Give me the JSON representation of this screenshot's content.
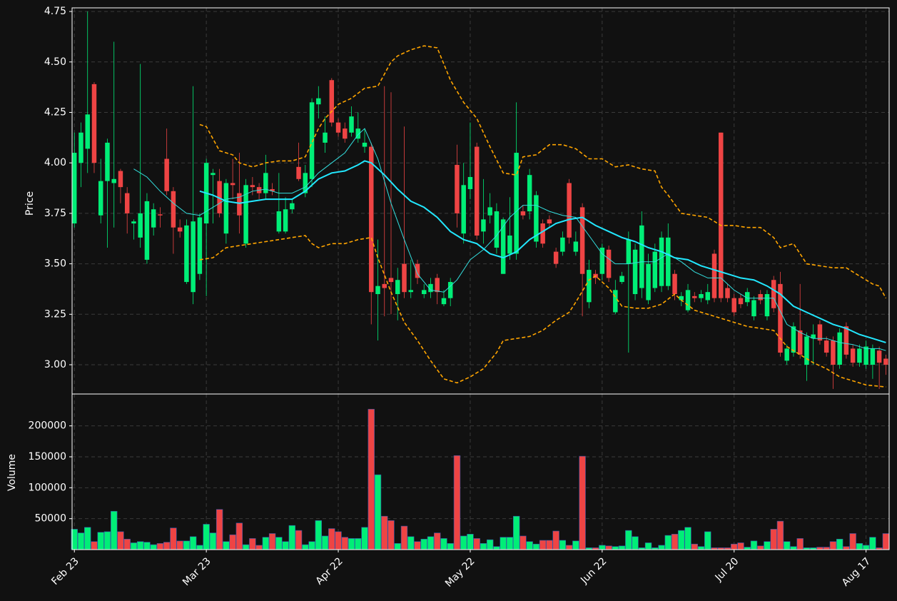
{
  "chart_data": [
    {
      "type": "candlestick",
      "ylabel": "Price",
      "up_color": "#00ee77",
      "down_color": "#ee4444",
      "xlim": [
        -0.35,
        123.5
      ],
      "ylim": [
        2.855,
        4.768
      ],
      "yticks": [
        {
          "value": 3,
          "label": "3.00"
        },
        3.25,
        {
          "value": 3.5,
          "label": "3.50"
        },
        3.75,
        {
          "value": 4,
          "label": "4.00"
        },
        4.25,
        {
          "value": 4.5,
          "label": "4.50"
        },
        4.75
      ],
      "grid": true,
      "open": [
        3.7,
        4.0,
        4.07,
        4.39,
        3.74,
        3.91,
        3.9,
        3.96,
        3.85,
        3.7,
        3.63,
        3.52,
        3.68,
        3.745,
        4.02,
        3.86,
        3.68,
        3.41,
        3.36,
        3.45,
        3.7,
        3.94,
        3.91,
        3.65,
        3.9,
        3.85,
        3.6,
        3.89,
        3.88,
        3.85,
        3.87,
        3.66,
        3.66,
        3.77,
        3.98,
        3.85,
        3.92,
        4.29,
        4.1,
        4.41,
        4.2,
        4.17,
        4.15,
        4.12,
        4.08,
        4.08,
        3.35,
        3.4,
        3.43,
        3.35,
        3.5,
        3.36,
        3.5,
        3.35,
        3.36,
        3.43,
        3.3,
        3.33,
        3.99,
        3.65,
        3.87,
        4.08,
        3.66,
        3.74,
        3.58,
        3.45,
        3.55,
        3.55,
        3.76,
        3.76,
        3.61,
        3.7,
        3.72,
        3.56,
        3.56,
        3.9,
        3.56,
        3.78,
        3.31,
        3.45,
        3.45,
        3.57,
        3.26,
        3.41,
        3.5,
        3.35,
        3.38,
        3.32,
        3.38,
        3.39,
        3.39,
        3.45,
        3.32,
        3.27,
        3.34,
        3.33,
        3.32,
        3.55,
        4.15,
        3.38,
        3.33,
        3.33,
        3.31,
        3.24,
        3.35,
        3.24,
        3.42,
        3.4,
        3.02,
        3.06,
        3.17,
        3.0,
        3.13,
        3.2,
        3.12,
        3.12,
        3.0,
        3.19,
        3.08,
        3.01,
        3.0,
        3.0,
        3.07,
        3.03
      ],
      "high": [
        4.15,
        4.2,
        4.75,
        4.4,
        4.02,
        4.12,
        4.6,
        3.97,
        3.88,
        3.72,
        4.49,
        3.85,
        3.8,
        3.78,
        4.17,
        3.88,
        3.72,
        3.72,
        4.38,
        3.75,
        4.02,
        3.97,
        3.97,
        3.92,
        4.02,
        4.05,
        3.92,
        3.93,
        3.9,
        4.04,
        3.9,
        3.95,
        3.83,
        3.82,
        4.1,
        3.99,
        4.32,
        4.38,
        4.23,
        4.42,
        4.22,
        4.2,
        4.28,
        4.25,
        4.17,
        4.1,
        3.62,
        4.38,
        4.35,
        3.48,
        4.18,
        3.52,
        3.52,
        3.4,
        3.43,
        3.45,
        3.37,
        3.43,
        4.09,
        4.0,
        4.2,
        4.1,
        3.92,
        3.85,
        3.8,
        3.73,
        3.83,
        4.3,
        3.79,
        3.97,
        3.86,
        3.72,
        3.74,
        3.58,
        3.66,
        3.92,
        3.66,
        3.8,
        3.52,
        3.47,
        3.6,
        3.59,
        3.42,
        3.46,
        3.66,
        3.6,
        3.76,
        3.55,
        3.6,
        3.66,
        3.7,
        3.47,
        3.36,
        3.4,
        3.36,
        3.37,
        3.4,
        3.57,
        4.15,
        3.4,
        3.35,
        3.35,
        3.38,
        3.34,
        3.37,
        3.37,
        3.44,
        3.46,
        3.1,
        3.21,
        3.4,
        3.16,
        3.2,
        3.22,
        3.14,
        3.14,
        3.18,
        3.21,
        3.1,
        3.1,
        3.12,
        3.1,
        3.09,
        3.05
      ],
      "low": [
        3.68,
        3.88,
        3.95,
        3.95,
        3.7,
        3.58,
        3.68,
        3.8,
        3.65,
        3.62,
        3.58,
        3.5,
        3.64,
        3.68,
        3.84,
        3.55,
        3.63,
        3.4,
        3.3,
        3.42,
        3.34,
        3.7,
        3.73,
        3.6,
        3.82,
        3.65,
        3.58,
        3.84,
        3.82,
        3.82,
        3.84,
        3.65,
        3.65,
        3.75,
        3.91,
        3.83,
        3.88,
        4.22,
        4.05,
        4.18,
        4.13,
        4.1,
        4.13,
        4.1,
        4.05,
        3.2,
        3.12,
        3.24,
        3.25,
        3.22,
        3.33,
        3.33,
        3.4,
        3.33,
        3.33,
        3.3,
        3.29,
        3.29,
        3.68,
        3.6,
        3.82,
        3.62,
        3.6,
        3.7,
        3.55,
        3.45,
        3.52,
        3.52,
        3.72,
        3.72,
        3.58,
        3.58,
        3.68,
        3.48,
        3.54,
        3.6,
        3.54,
        3.24,
        3.28,
        3.4,
        3.42,
        3.41,
        3.25,
        3.4,
        3.06,
        3.32,
        3.33,
        3.3,
        3.36,
        3.36,
        3.37,
        3.32,
        3.29,
        3.26,
        3.31,
        3.31,
        3.3,
        3.31,
        3.31,
        3.31,
        3.24,
        3.28,
        3.29,
        3.22,
        3.3,
        3.22,
        3.26,
        3.04,
        3.0,
        3.04,
        3.03,
        2.92,
        3.0,
        3.1,
        3.04,
        2.88,
        2.98,
        3.03,
        2.99,
        2.99,
        2.98,
        2.93,
        2.88,
        2.95
      ],
      "close": [
        4.05,
        4.15,
        4.24,
        4.0,
        3.91,
        4.1,
        3.92,
        3.88,
        3.75,
        3.71,
        3.75,
        3.81,
        3.77,
        3.74,
        3.86,
        3.68,
        3.66,
        3.69,
        3.71,
        3.73,
        4.0,
        3.95,
        3.75,
        3.9,
        3.89,
        3.74,
        3.89,
        3.88,
        3.85,
        3.95,
        3.86,
        3.76,
        3.77,
        3.8,
        3.92,
        3.95,
        4.3,
        4.32,
        4.15,
        4.2,
        4.15,
        4.12,
        4.23,
        4.17,
        4.1,
        3.36,
        3.39,
        3.38,
        3.41,
        3.42,
        3.36,
        3.37,
        3.43,
        3.37,
        3.4,
        3.36,
        3.33,
        3.41,
        3.75,
        3.89,
        3.93,
        3.64,
        3.72,
        3.78,
        3.76,
        3.72,
        3.64,
        4.05,
        3.74,
        3.94,
        3.84,
        3.6,
        3.7,
        3.5,
        3.63,
        3.63,
        3.61,
        3.45,
        3.47,
        3.43,
        3.58,
        3.43,
        3.37,
        3.44,
        3.62,
        3.57,
        3.69,
        3.5,
        3.56,
        3.63,
        3.63,
        3.35,
        3.34,
        3.37,
        3.33,
        3.35,
        3.36,
        3.33,
        3.33,
        3.33,
        3.26,
        3.3,
        3.36,
        3.32,
        3.32,
        3.35,
        3.28,
        3.06,
        3.08,
        3.19,
        3.05,
        3.14,
        3.15,
        3.12,
        3.06,
        3.0,
        3.16,
        3.05,
        3.01,
        3.08,
        3.09,
        3.08,
        3.01,
        3.0
      ],
      "lines": [
        {
          "color": "#33dddd",
          "width": 1,
          "x": [
            9,
            11,
            13,
            15,
            17,
            19,
            21,
            23,
            25,
            27,
            29,
            31,
            33,
            35,
            37,
            39,
            41,
            43,
            44,
            46,
            48,
            50,
            52,
            54,
            56,
            58,
            60,
            62,
            64,
            66,
            68,
            70,
            72,
            74,
            76,
            78,
            80,
            82,
            84,
            86,
            88,
            90,
            92,
            94,
            96,
            98,
            100,
            102,
            104,
            106,
            108,
            110,
            112,
            114,
            116,
            118,
            120,
            122,
            123
          ],
          "values": [
            3.97,
            3.93,
            3.86,
            3.8,
            3.75,
            3.74,
            3.78,
            3.82,
            3.83,
            3.86,
            3.87,
            3.85,
            3.85,
            3.88,
            3.95,
            4.0,
            4.05,
            4.14,
            4.17,
            4.02,
            3.8,
            3.62,
            3.45,
            3.37,
            3.36,
            3.42,
            3.52,
            3.57,
            3.64,
            3.73,
            3.79,
            3.79,
            3.76,
            3.74,
            3.73,
            3.64,
            3.55,
            3.5,
            3.5,
            3.51,
            3.51,
            3.55,
            3.51,
            3.46,
            3.43,
            3.43,
            3.37,
            3.33,
            3.33,
            3.33,
            3.2,
            3.16,
            3.13,
            3.13,
            3.11,
            3.1,
            3.08,
            3.08,
            3.07
          ]
        },
        {
          "color": "#22e8ff",
          "width": 2,
          "x": [
            19,
            21,
            23,
            25,
            27,
            29,
            31,
            33,
            35,
            37,
            39,
            41,
            43,
            44,
            45,
            47,
            49,
            51,
            53,
            55,
            57,
            59,
            61,
            63,
            65,
            67,
            69,
            71,
            73,
            75,
            77,
            79,
            81,
            83,
            85,
            87,
            89,
            91,
            93,
            95,
            97,
            99,
            101,
            103,
            105,
            107,
            109,
            111,
            113,
            115,
            117,
            119,
            121,
            123
          ],
          "values": [
            3.86,
            3.84,
            3.81,
            3.8,
            3.81,
            3.82,
            3.82,
            3.82,
            3.86,
            3.92,
            3.95,
            3.96,
            3.99,
            4.01,
            4.0,
            3.94,
            3.87,
            3.81,
            3.78,
            3.73,
            3.66,
            3.62,
            3.6,
            3.55,
            3.53,
            3.56,
            3.62,
            3.66,
            3.7,
            3.72,
            3.73,
            3.69,
            3.66,
            3.63,
            3.61,
            3.58,
            3.56,
            3.53,
            3.52,
            3.49,
            3.47,
            3.45,
            3.43,
            3.42,
            3.39,
            3.35,
            3.29,
            3.26,
            3.23,
            3.2,
            3.18,
            3.15,
            3.13,
            3.11
          ]
        },
        {
          "color": "#ffa500",
          "width": 1.6,
          "dash": true,
          "x": [
            19,
            20,
            22,
            24,
            25,
            27,
            29,
            31,
            33,
            35,
            37,
            38,
            40,
            42,
            44,
            46,
            48,
            49,
            51,
            53,
            55,
            57,
            59,
            61,
            63,
            65,
            67,
            68,
            70,
            72,
            74,
            76,
            78,
            80,
            82,
            84,
            86,
            88,
            89,
            90,
            92,
            94,
            96,
            98,
            100,
            102,
            104,
            106,
            107,
            109,
            111,
            113,
            115,
            117,
            119,
            121,
            122,
            123
          ],
          "values": [
            4.19,
            4.18,
            4.06,
            4.04,
            4.0,
            3.98,
            4.0,
            4.01,
            4.01,
            4.03,
            4.17,
            4.22,
            4.29,
            4.32,
            4.37,
            4.38,
            4.5,
            4.53,
            4.56,
            4.58,
            4.57,
            4.41,
            4.3,
            4.22,
            4.08,
            3.95,
            3.94,
            4.03,
            4.04,
            4.09,
            4.09,
            4.07,
            4.02,
            4.02,
            3.98,
            3.99,
            3.97,
            3.96,
            3.88,
            3.84,
            3.75,
            3.74,
            3.73,
            3.69,
            3.69,
            3.68,
            3.68,
            3.63,
            3.58,
            3.6,
            3.5,
            3.49,
            3.48,
            3.48,
            3.44,
            3.4,
            3.39,
            3.33
          ]
        },
        {
          "color": "#ffa500",
          "width": 1.6,
          "dash": true,
          "x": [
            19,
            21,
            23,
            25,
            27,
            29,
            31,
            33,
            35,
            36,
            37,
            39,
            41,
            43,
            45,
            46,
            48,
            50,
            52,
            54,
            56,
            58,
            60,
            62,
            64,
            65,
            67,
            69,
            71,
            73,
            75,
            76,
            78,
            79,
            81,
            83,
            85,
            87,
            89,
            91,
            92,
            94,
            96,
            98,
            100,
            102,
            104,
            106,
            108,
            110,
            112,
            114,
            116,
            118,
            120,
            123
          ],
          "values": [
            3.52,
            3.53,
            3.58,
            3.59,
            3.6,
            3.61,
            3.62,
            3.63,
            3.64,
            3.6,
            3.58,
            3.6,
            3.6,
            3.62,
            3.63,
            3.53,
            3.36,
            3.21,
            3.12,
            3.02,
            2.93,
            2.91,
            2.94,
            2.98,
            3.06,
            3.12,
            3.13,
            3.14,
            3.17,
            3.22,
            3.26,
            3.31,
            3.42,
            3.44,
            3.38,
            3.29,
            3.28,
            3.28,
            3.3,
            3.35,
            3.32,
            3.27,
            3.25,
            3.23,
            3.21,
            3.19,
            3.18,
            3.17,
            3.09,
            3.05,
            3.01,
            2.98,
            2.94,
            2.92,
            2.9,
            2.89
          ]
        }
      ]
    },
    {
      "type": "bar",
      "ylabel": "Volume",
      "xlim": [
        -0.35,
        123.5
      ],
      "ylim": [
        0,
        251500
      ],
      "yticks": [
        50000,
        100000,
        150000,
        200000
      ],
      "grid": true,
      "xticks": [
        {
          "value": 0,
          "label": "Feb 23"
        },
        {
          "value": 20,
          "label": "Mar 23"
        },
        {
          "value": 40,
          "label": "Apr 22"
        },
        {
          "value": 60,
          "label": "May 22"
        },
        {
          "value": 80,
          "label": "Jun 22"
        },
        {
          "value": 100,
          "label": "Jul 20"
        },
        {
          "value": 120,
          "label": "Aug 17"
        }
      ],
      "values": [
        33000,
        27000,
        36000,
        13000,
        28000,
        29000,
        62000,
        29000,
        17000,
        11000,
        13000,
        12000,
        8000,
        10000,
        12000,
        35000,
        14000,
        14000,
        21000,
        7000,
        41000,
        27000,
        65000,
        13000,
        24000,
        43000,
        8000,
        18000,
        7000,
        20000,
        26000,
        20000,
        13000,
        39000,
        31000,
        8000,
        13000,
        47000,
        22000,
        34000,
        29000,
        20000,
        18000,
        18000,
        36000,
        227000,
        121000,
        54000,
        47000,
        10000,
        38000,
        21000,
        13000,
        17000,
        21000,
        27000,
        18000,
        10000,
        152000,
        22000,
        25000,
        18000,
        10000,
        16000,
        5000,
        20000,
        20000,
        54000,
        22000,
        13000,
        9000,
        15000,
        15000,
        30000,
        15000,
        7000,
        14000,
        151000,
        3000,
        3000,
        7000,
        6000,
        5000,
        6000,
        31000,
        21000,
        3000,
        11000,
        3000,
        7000,
        23000,
        25000,
        31000,
        36000,
        9000,
        5000,
        29000,
        3000,
        3000,
        3000,
        9000,
        11000,
        4000,
        14000,
        6000,
        13000,
        33000,
        46000,
        13000,
        5000,
        18000,
        3000,
        3000,
        4000,
        4000,
        13000,
        17000,
        5000,
        26000,
        10000,
        7000,
        20000,
        3000,
        26000
      ]
    }
  ]
}
